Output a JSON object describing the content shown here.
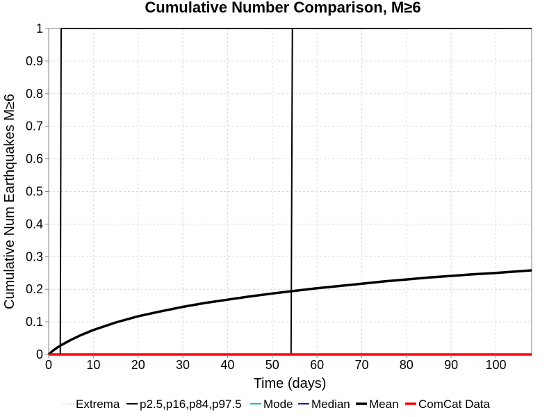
{
  "chart_data": {
    "type": "line",
    "title": "Cumulative Number Comparison, M≥6",
    "xlabel": "Time (days)",
    "ylabel": "Cumulative Num Earthquakes M≥6",
    "xlim": [
      0,
      108
    ],
    "ylim": [
      0,
      1
    ],
    "x_ticks": [
      0,
      10,
      20,
      30,
      40,
      50,
      60,
      70,
      80,
      90,
      100
    ],
    "y_ticks": [
      0,
      0.1,
      0.2,
      0.3,
      0.4,
      0.5,
      0.6,
      0.7,
      0.8,
      0.9,
      1
    ],
    "y_tick_labels": [
      "0",
      "0.1",
      "0.2",
      "0.3",
      "0.4",
      "0.5",
      "0.6",
      "0.7",
      "0.8",
      "0.9",
      "1"
    ],
    "grid": true,
    "legend_position": "bottom",
    "series": [
      {
        "name": "Extrema",
        "color": "#999999",
        "style": "dotted",
        "x": [],
        "y": []
      },
      {
        "name": "p2.5,p16,p84,p97.5",
        "color": "#000000",
        "style": "thin",
        "x": [
          0,
          2.6,
          2.8,
          108
        ],
        "y": [
          0,
          0,
          1,
          1
        ],
        "extra_lines": [
          {
            "x": [
              0,
              54.2,
              54.5,
              108
            ],
            "y": [
              0,
              0,
              1,
              1
            ]
          }
        ]
      },
      {
        "name": "Mode",
        "color": "#22b8b8",
        "style": "solid",
        "x": [],
        "y": []
      },
      {
        "name": "Median",
        "color": "#1a1aa6",
        "style": "solid",
        "x": [],
        "y": []
      },
      {
        "name": "Mean",
        "color": "#000000",
        "style": "thick",
        "x": [
          0,
          1,
          2,
          3,
          5,
          7,
          10,
          15,
          20,
          25,
          30,
          35,
          40,
          45,
          50,
          55,
          60,
          65,
          70,
          75,
          80,
          85,
          90,
          95,
          100,
          105,
          108
        ],
        "y": [
          0,
          0.012,
          0.022,
          0.03,
          0.045,
          0.058,
          0.075,
          0.098,
          0.117,
          0.132,
          0.146,
          0.158,
          0.168,
          0.178,
          0.187,
          0.195,
          0.203,
          0.21,
          0.217,
          0.224,
          0.23,
          0.236,
          0.241,
          0.246,
          0.25,
          0.255,
          0.258
        ]
      },
      {
        "name": "ComCat Data",
        "color": "#ff0000",
        "style": "thick",
        "x": [
          0,
          108
        ],
        "y": [
          0,
          0
        ]
      }
    ]
  }
}
